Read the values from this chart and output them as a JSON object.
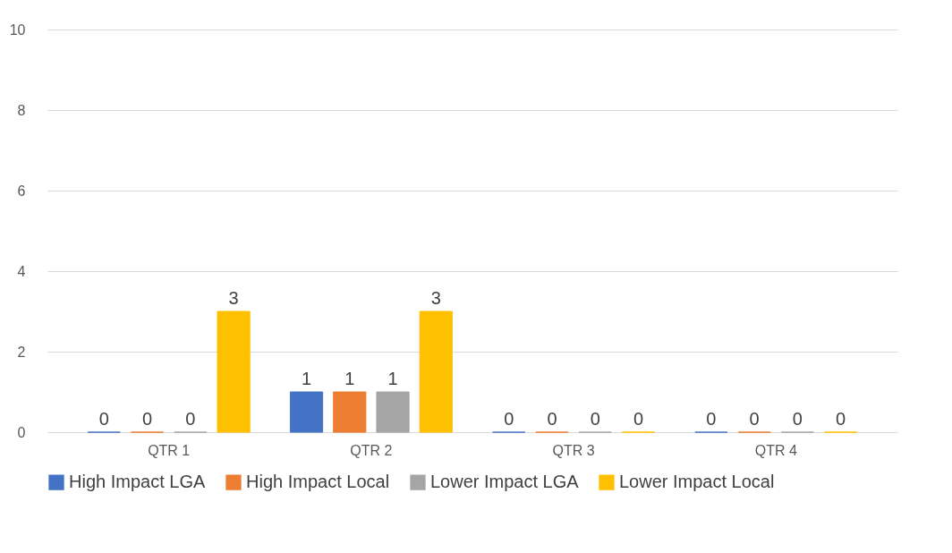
{
  "chart_data": {
    "type": "bar",
    "categories": [
      "QTR 1",
      "QTR 2",
      "QTR 3",
      "QTR 4"
    ],
    "series": [
      {
        "name": "High Impact LGA",
        "color": "#4472c4",
        "values": [
          0,
          1,
          0,
          0
        ]
      },
      {
        "name": "High Impact Local",
        "color": "#ed7d31",
        "values": [
          0,
          1,
          0,
          0
        ]
      },
      {
        "name": "Lower Impact LGA",
        "color": "#a5a5a5",
        "values": [
          0,
          1,
          0,
          0
        ]
      },
      {
        "name": "Lower Impact Local",
        "color": "#ffc000",
        "values": [
          3,
          3,
          0,
          0
        ]
      }
    ],
    "ylim": [
      0,
      10
    ],
    "yticks": [
      0,
      2,
      4,
      6,
      8,
      10
    ],
    "grid": "y",
    "legend": "bottom",
    "data_labels": true
  }
}
